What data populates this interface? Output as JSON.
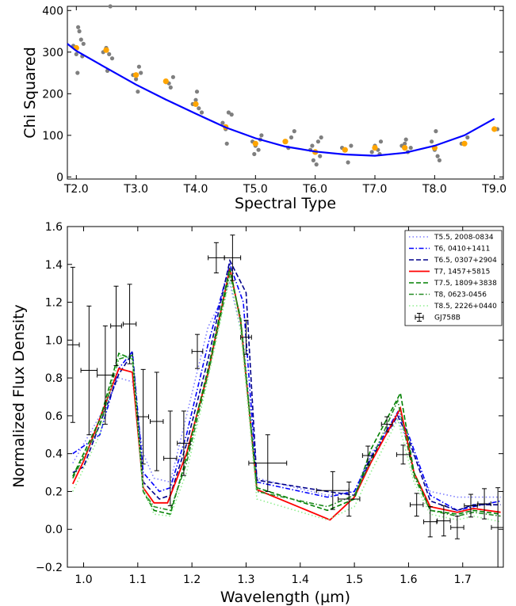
{
  "chart_data": [
    {
      "type": "scatter",
      "xlabel": "Spectral Type",
      "ylabel": "Chi Squared",
      "xlim": [
        1.85,
        9.15
      ],
      "ylim": [
        -5,
        410
      ],
      "x_tick_values": [
        2,
        3,
        4,
        5,
        6,
        7,
        8,
        9
      ],
      "x_tick_labels": [
        "T2.0",
        "T3.0",
        "T4.0",
        "T5.0",
        "T6.0",
        "T7.0",
        "T8.0",
        "T9.0"
      ],
      "y_ticks": [
        0,
        100,
        200,
        300,
        400
      ],
      "colors": {
        "grey_points": "#7f7f7f",
        "orange_points": "#ffa500",
        "fit_line": "#0000ff"
      },
      "series": [
        {
          "style": "grey-points",
          "points": [
            [
              1.95,
              315
            ],
            [
              2.0,
              295
            ],
            [
              2.03,
              360
            ],
            [
              2.05,
              350
            ],
            [
              2.08,
              330
            ],
            [
              2.1,
              290
            ],
            [
              2.02,
              250
            ],
            [
              2.12,
              320
            ],
            [
              2.45,
              300
            ],
            [
              2.5,
              310
            ],
            [
              2.55,
              295
            ],
            [
              2.6,
              285
            ],
            [
              2.52,
              255
            ],
            [
              2.57,
              410
            ],
            [
              2.95,
              245
            ],
            [
              3.0,
              235
            ],
            [
              3.05,
              265
            ],
            [
              3.08,
              250
            ],
            [
              3.03,
              205
            ],
            [
              3.5,
              228
            ],
            [
              3.55,
              225
            ],
            [
              3.62,
              240
            ],
            [
              3.58,
              215
            ],
            [
              3.95,
              175
            ],
            [
              4.0,
              185
            ],
            [
              4.05,
              165
            ],
            [
              4.02,
              205
            ],
            [
              4.1,
              155
            ],
            [
              4.45,
              130
            ],
            [
              4.5,
              115
            ],
            [
              4.55,
              155
            ],
            [
              4.6,
              150
            ],
            [
              4.52,
              80
            ],
            [
              4.95,
              85
            ],
            [
              5.0,
              75
            ],
            [
              5.05,
              65
            ],
            [
              5.08,
              90
            ],
            [
              4.98,
              55
            ],
            [
              5.1,
              100
            ],
            [
              5.5,
              85
            ],
            [
              5.55,
              70
            ],
            [
              5.6,
              95
            ],
            [
              5.65,
              110
            ],
            [
              5.95,
              75
            ],
            [
              6.0,
              60
            ],
            [
              6.05,
              85
            ],
            [
              6.1,
              95
            ],
            [
              5.97,
              40
            ],
            [
              6.08,
              50
            ],
            [
              6.02,
              30
            ],
            [
              5.92,
              65
            ],
            [
              6.45,
              70
            ],
            [
              6.5,
              65
            ],
            [
              6.55,
              35
            ],
            [
              6.6,
              75
            ],
            [
              6.95,
              60
            ],
            [
              7.0,
              75
            ],
            [
              7.05,
              65
            ],
            [
              7.1,
              85
            ],
            [
              7.08,
              55
            ],
            [
              7.45,
              75
            ],
            [
              7.5,
              80
            ],
            [
              7.55,
              60
            ],
            [
              7.6,
              70
            ],
            [
              7.52,
              90
            ],
            [
              7.95,
              85
            ],
            [
              8.0,
              65
            ],
            [
              8.05,
              50
            ],
            [
              8.08,
              40
            ],
            [
              8.02,
              110
            ],
            [
              8.45,
              80
            ],
            [
              8.55,
              95
            ],
            [
              9.05,
              115
            ]
          ]
        },
        {
          "style": "orange-points",
          "points": [
            [
              2.0,
              310
            ],
            [
              2.5,
              305
            ],
            [
              3.0,
              245
            ],
            [
              3.5,
              230
            ],
            [
              4.0,
              175
            ],
            [
              4.5,
              120
            ],
            [
              5.0,
              80
            ],
            [
              5.5,
              85
            ],
            [
              6.0,
              60
            ],
            [
              6.5,
              65
            ],
            [
              7.0,
              70
            ],
            [
              7.5,
              70
            ],
            [
              8.0,
              70
            ],
            [
              8.5,
              80
            ],
            [
              9.0,
              115
            ]
          ]
        },
        {
          "style": "fit-line",
          "points": [
            [
              1.85,
              320
            ],
            [
              2.0,
              303
            ],
            [
              2.5,
              262
            ],
            [
              3.0,
              222
            ],
            [
              3.5,
              186
            ],
            [
              4.0,
              152
            ],
            [
              4.5,
              119
            ],
            [
              5.0,
              93
            ],
            [
              5.5,
              73
            ],
            [
              6.0,
              61
            ],
            [
              6.5,
              54
            ],
            [
              7.0,
              51
            ],
            [
              7.5,
              58
            ],
            [
              8.0,
              75
            ],
            [
              8.5,
              100
            ],
            [
              9.0,
              140
            ]
          ]
        }
      ]
    },
    {
      "type": "line",
      "xlabel": "Wavelength (μm)",
      "ylabel": "Normalized Flux Density",
      "xlim": [
        0.97,
        1.775
      ],
      "ylim": [
        -0.2,
        1.6
      ],
      "x_ticks": [
        "1.0",
        "1.1",
        "1.2",
        "1.3",
        "1.4",
        "1.5",
        "1.6",
        "1.7"
      ],
      "y_ticks": [
        "−0.2",
        "0.0",
        "0.2",
        "0.4",
        "0.6",
        "0.8",
        "1.0",
        "1.2",
        "1.4",
        "1.6"
      ],
      "legend_position": "top-right",
      "series": [
        {
          "name": "T5.5, 2008-0834",
          "color": "#7f7fff",
          "dash": "dotted",
          "x": [
            0.98,
            1.03,
            1.065,
            1.09,
            1.11,
            1.13,
            1.16,
            1.19,
            1.23,
            1.27,
            1.295,
            1.32,
            1.45,
            1.5,
            1.53,
            1.58,
            1.6,
            1.64,
            1.69,
            1.72,
            1.77
          ],
          "y": [
            0.35,
            0.6,
            0.8,
            0.78,
            0.4,
            0.27,
            0.25,
            0.6,
            1.07,
            1.3,
            1.0,
            0.27,
            0.18,
            0.2,
            0.4,
            0.58,
            0.45,
            0.2,
            0.17,
            0.17,
            0.17
          ]
        },
        {
          "name": "T6, 0410+1411",
          "color": "#0000ff",
          "dash": "dashdot",
          "x": [
            0.98,
            1.03,
            1.065,
            1.09,
            1.11,
            1.14,
            1.16,
            1.19,
            1.23,
            1.27,
            1.295,
            1.32,
            1.45,
            1.5,
            1.53,
            1.58,
            1.6,
            1.64,
            1.69,
            1.72,
            1.77
          ],
          "y": [
            0.4,
            0.5,
            0.85,
            0.94,
            0.3,
            0.2,
            0.22,
            0.5,
            0.98,
            1.4,
            1.2,
            0.25,
            0.17,
            0.2,
            0.38,
            0.62,
            0.5,
            0.18,
            0.1,
            0.12,
            0.15
          ]
        },
        {
          "name": "T6.5, 0307+2904",
          "color": "#00008b",
          "dash": "dashed",
          "x": [
            0.98,
            1.0,
            1.065,
            1.09,
            1.11,
            1.14,
            1.16,
            1.19,
            1.23,
            1.27,
            1.3,
            1.32,
            1.45,
            1.5,
            1.53,
            1.58,
            1.6,
            1.64,
            1.69,
            1.72,
            1.77
          ],
          "y": [
            0.3,
            0.33,
            0.82,
            0.93,
            0.25,
            0.16,
            0.18,
            0.45,
            0.9,
            1.42,
            1.25,
            0.26,
            0.2,
            0.18,
            0.37,
            0.6,
            0.48,
            0.15,
            0.1,
            0.13,
            0.13
          ]
        },
        {
          "name": "T7, 1457+5815",
          "color": "#ff0000",
          "dash": "solid",
          "x": [
            0.98,
            1.0,
            1.065,
            1.09,
            1.11,
            1.13,
            1.155,
            1.19,
            1.23,
            1.27,
            1.29,
            1.32,
            1.455,
            1.5,
            1.53,
            1.585,
            1.61,
            1.64,
            1.69,
            1.72,
            1.77
          ],
          "y": [
            0.24,
            0.36,
            0.85,
            0.83,
            0.22,
            0.14,
            0.14,
            0.4,
            0.83,
            1.38,
            1.1,
            0.21,
            0.05,
            0.17,
            0.35,
            0.64,
            0.3,
            0.12,
            0.09,
            0.11,
            0.09
          ]
        },
        {
          "name": "T7.5, 1809+3838",
          "color": "#008000",
          "dash": "dashed",
          "x": [
            0.98,
            1.03,
            1.065,
            1.09,
            1.11,
            1.13,
            1.16,
            1.19,
            1.23,
            1.27,
            1.29,
            1.32,
            1.45,
            1.5,
            1.53,
            1.585,
            1.61,
            1.64,
            1.69,
            1.72,
            1.77
          ],
          "y": [
            0.28,
            0.58,
            0.93,
            0.9,
            0.2,
            0.1,
            0.08,
            0.38,
            0.85,
            1.38,
            1.1,
            0.22,
            0.1,
            0.16,
            0.42,
            0.72,
            0.3,
            0.1,
            0.08,
            0.1,
            0.08
          ]
        },
        {
          "name": "T8, 0623-0456",
          "color": "#228b22",
          "dash": "dashdot",
          "x": [
            0.98,
            1.03,
            1.065,
            1.09,
            1.11,
            1.13,
            1.16,
            1.19,
            1.23,
            1.27,
            1.29,
            1.32,
            1.45,
            1.5,
            1.53,
            1.58,
            1.61,
            1.64,
            1.69,
            1.72,
            1.77
          ],
          "y": [
            0.27,
            0.55,
            0.9,
            0.92,
            0.2,
            0.12,
            0.1,
            0.35,
            0.82,
            1.35,
            1.12,
            0.2,
            0.12,
            0.18,
            0.36,
            0.68,
            0.28,
            0.1,
            0.07,
            0.09,
            0.07
          ]
        },
        {
          "name": "T8.5, 2226+0440",
          "color": "#90ee90",
          "dash": "dotted",
          "x": [
            0.98,
            1.03,
            1.065,
            1.09,
            1.11,
            1.13,
            1.16,
            1.19,
            1.23,
            1.27,
            1.29,
            1.32,
            1.45,
            1.5,
            1.53,
            1.58,
            1.61,
            1.64,
            1.69,
            1.72,
            1.77
          ],
          "y": [
            0.2,
            0.5,
            0.92,
            0.9,
            0.22,
            0.08,
            0.07,
            0.3,
            0.8,
            1.33,
            1.05,
            0.16,
            0.05,
            0.12,
            0.3,
            0.58,
            0.25,
            0.08,
            0.05,
            0.07,
            0.04
          ]
        }
      ],
      "errorbar_series": {
        "name": "GJ758B",
        "color": "#000000",
        "points": [
          {
            "x": 0.98,
            "xerr": 0.012,
            "y": 0.975,
            "yerr": 0.41
          },
          {
            "x": 1.01,
            "xerr": 0.015,
            "y": 0.84,
            "yerr": 0.34
          },
          {
            "x": 1.04,
            "xerr": 0.015,
            "y": 0.815,
            "yerr": 0.26
          },
          {
            "x": 1.06,
            "xerr": 0.01,
            "y": 1.075,
            "yerr": 0.21
          },
          {
            "x": 1.085,
            "xerr": 0.012,
            "y": 1.085,
            "yerr": 0.21
          },
          {
            "x": 1.11,
            "xerr": 0.01,
            "y": 0.595,
            "yerr": 0.25
          },
          {
            "x": 1.135,
            "xerr": 0.012,
            "y": 0.57,
            "yerr": 0.26
          },
          {
            "x": 1.16,
            "xerr": 0.012,
            "y": 0.375,
            "yerr": 0.25
          },
          {
            "x": 1.185,
            "xerr": 0.012,
            "y": 0.455,
            "yerr": 0.17
          },
          {
            "x": 1.21,
            "xerr": 0.01,
            "y": 0.94,
            "yerr": 0.09
          },
          {
            "x": 1.245,
            "xerr": 0.015,
            "y": 1.435,
            "yerr": 0.08
          },
          {
            "x": 1.275,
            "xerr": 0.015,
            "y": 1.435,
            "yerr": 0.12
          },
          {
            "x": 1.3,
            "xerr": 0.01,
            "y": 1.015,
            "yerr": 0.09
          },
          {
            "x": 1.34,
            "xerr": 0.035,
            "y": 0.35,
            "yerr": 0.15
          },
          {
            "x": 1.46,
            "xerr": 0.03,
            "y": 0.205,
            "yerr": 0.1
          },
          {
            "x": 1.49,
            "xerr": 0.02,
            "y": 0.16,
            "yerr": 0.09
          },
          {
            "x": 1.525,
            "xerr": 0.01,
            "y": 0.39,
            "yerr": 0.05
          },
          {
            "x": 1.56,
            "xerr": 0.01,
            "y": 0.555,
            "yerr": 0.04
          },
          {
            "x": 1.59,
            "xerr": 0.012,
            "y": 0.395,
            "yerr": 0.05
          },
          {
            "x": 1.615,
            "xerr": 0.012,
            "y": 0.13,
            "yerr": 0.06
          },
          {
            "x": 1.64,
            "xerr": 0.012,
            "y": 0.04,
            "yerr": 0.08
          },
          {
            "x": 1.665,
            "xerr": 0.012,
            "y": 0.045,
            "yerr": 0.08
          },
          {
            "x": 1.69,
            "xerr": 0.012,
            "y": 0.01,
            "yerr": 0.06
          },
          {
            "x": 1.715,
            "xerr": 0.012,
            "y": 0.125,
            "yerr": 0.06
          },
          {
            "x": 1.74,
            "xerr": 0.012,
            "y": 0.135,
            "yerr": 0.08
          },
          {
            "x": 1.765,
            "xerr": 0.012,
            "y": 0.01,
            "yerr": 0.21
          }
        ]
      }
    }
  ]
}
